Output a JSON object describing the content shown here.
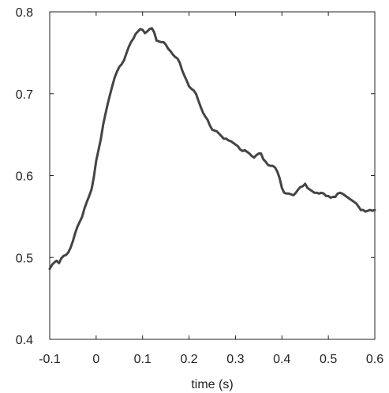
{
  "chart_data": {
    "type": "line",
    "title": "",
    "xlabel": "time (s)",
    "ylabel": "",
    "xlim": [
      -0.1,
      0.6
    ],
    "ylim": [
      0.4,
      0.8
    ],
    "xticks": [
      -0.1,
      0,
      0.1,
      0.2,
      0.3,
      0.4,
      0.5,
      0.6
    ],
    "xtick_labels": [
      "-0.1",
      "0",
      "0.1",
      "0.2",
      "0.3",
      "0.4",
      "0.5",
      "0.6"
    ],
    "yticks": [
      0.4,
      0.5,
      0.6,
      0.7,
      0.8
    ],
    "ytick_labels": [
      "0.4",
      "0.5",
      "0.6",
      "0.7",
      "0.8"
    ],
    "grid": false,
    "line_color": "#444444",
    "series": [
      {
        "x": [
          -0.1,
          -0.095,
          -0.09,
          -0.085,
          -0.08,
          -0.075,
          -0.07,
          -0.065,
          -0.06,
          -0.055,
          -0.05,
          -0.045,
          -0.04,
          -0.035,
          -0.03,
          -0.025,
          -0.02,
          -0.015,
          -0.01,
          -0.005,
          0.0,
          0.005,
          0.01,
          0.015,
          0.02,
          0.025,
          0.03,
          0.035,
          0.04,
          0.045,
          0.05,
          0.055,
          0.06,
          0.065,
          0.07,
          0.075,
          0.08,
          0.085,
          0.09,
          0.095,
          0.1,
          0.105,
          0.11,
          0.115,
          0.12,
          0.125,
          0.13,
          0.135,
          0.14,
          0.145,
          0.15,
          0.155,
          0.16,
          0.165,
          0.17,
          0.175,
          0.18,
          0.185,
          0.19,
          0.195,
          0.2,
          0.205,
          0.21,
          0.215,
          0.22,
          0.225,
          0.23,
          0.235,
          0.24,
          0.245,
          0.25,
          0.255,
          0.26,
          0.265,
          0.27,
          0.275,
          0.28,
          0.285,
          0.29,
          0.295,
          0.3,
          0.305,
          0.31,
          0.315,
          0.32,
          0.325,
          0.33,
          0.335,
          0.34,
          0.345,
          0.35,
          0.355,
          0.36,
          0.365,
          0.37,
          0.375,
          0.38,
          0.385,
          0.39,
          0.395,
          0.4,
          0.405,
          0.41,
          0.415,
          0.42,
          0.425,
          0.43,
          0.435,
          0.44,
          0.445,
          0.45,
          0.455,
          0.46,
          0.465,
          0.47,
          0.475,
          0.48,
          0.485,
          0.49,
          0.495,
          0.5,
          0.505,
          0.51,
          0.515,
          0.52,
          0.525,
          0.53,
          0.535,
          0.54,
          0.545,
          0.55,
          0.555,
          0.56,
          0.565,
          0.57,
          0.575,
          0.58,
          0.585,
          0.59,
          0.595,
          0.6
        ],
        "y": [
          0.486,
          0.491,
          0.494,
          0.496,
          0.493,
          0.499,
          0.502,
          0.503,
          0.506,
          0.512,
          0.52,
          0.53,
          0.538,
          0.544,
          0.55,
          0.56,
          0.568,
          0.575,
          0.583,
          0.598,
          0.618,
          0.631,
          0.644,
          0.662,
          0.675,
          0.688,
          0.699,
          0.71,
          0.72,
          0.727,
          0.733,
          0.736,
          0.741,
          0.749,
          0.757,
          0.763,
          0.767,
          0.773,
          0.776,
          0.779,
          0.778,
          0.774,
          0.776,
          0.779,
          0.78,
          0.775,
          0.765,
          0.764,
          0.763,
          0.763,
          0.76,
          0.755,
          0.752,
          0.748,
          0.745,
          0.743,
          0.738,
          0.729,
          0.722,
          0.716,
          0.709,
          0.706,
          0.704,
          0.7,
          0.692,
          0.684,
          0.677,
          0.672,
          0.668,
          0.661,
          0.656,
          0.655,
          0.654,
          0.651,
          0.648,
          0.645,
          0.645,
          0.643,
          0.642,
          0.64,
          0.638,
          0.636,
          0.632,
          0.63,
          0.631,
          0.629,
          0.627,
          0.624,
          0.622,
          0.625,
          0.627,
          0.627,
          0.62,
          0.617,
          0.613,
          0.612,
          0.612,
          0.61,
          0.605,
          0.597,
          0.585,
          0.579,
          0.578,
          0.578,
          0.577,
          0.576,
          0.579,
          0.583,
          0.586,
          0.587,
          0.59,
          0.585,
          0.583,
          0.581,
          0.579,
          0.579,
          0.578,
          0.579,
          0.578,
          0.575,
          0.575,
          0.573,
          0.574,
          0.574,
          0.578,
          0.579,
          0.578,
          0.576,
          0.574,
          0.572,
          0.57,
          0.568,
          0.566,
          0.562,
          0.558,
          0.558,
          0.556,
          0.557,
          0.558,
          0.557,
          0.558
        ]
      }
    ]
  }
}
